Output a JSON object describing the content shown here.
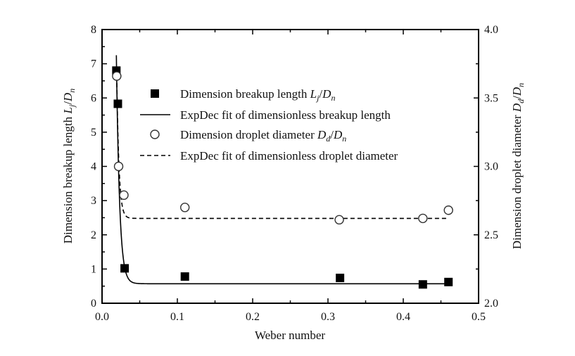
{
  "chart_data": {
    "type": "scatter",
    "title": "",
    "xlabel": "Weber number",
    "ylabel_left": {
      "text": "Dimension breakup length",
      "num": "L",
      "num_sub": "j",
      "den": "D",
      "den_sub": "n"
    },
    "ylabel_right": {
      "text": "Dimension droplet diameter",
      "num": "D",
      "num_sub": "d",
      "den": "D",
      "den_sub": "n"
    },
    "xlim": [
      0.0,
      0.5
    ],
    "ylim_left": [
      0,
      8
    ],
    "ylim_right": [
      2.0,
      4.0
    ],
    "x_ticks": [
      "0.0",
      "0.1",
      "0.2",
      "0.3",
      "0.4",
      "0.5"
    ],
    "y_left_ticks": [
      "0",
      "1",
      "2",
      "3",
      "4",
      "5",
      "6",
      "7",
      "8"
    ],
    "y_right_ticks": [
      "2.0",
      "2.5",
      "3.0",
      "3.5",
      "4.0"
    ],
    "grid": false,
    "legend_position": "upper-center",
    "series": [
      {
        "name": "Dimension breakup length Lj/Dn",
        "legend": {
          "text": "Dimension breakup length",
          "num": "L",
          "num_sub": "j",
          "den": "D",
          "den_sub": "n"
        },
        "axis": "left",
        "marker": "filled-square",
        "x": [
          0.019,
          0.021,
          0.03,
          0.11,
          0.316,
          0.426,
          0.46
        ],
        "y": [
          6.8,
          5.83,
          1.02,
          0.78,
          0.74,
          0.55,
          0.62
        ]
      },
      {
        "name": "ExpDec fit of dimensionless breakup length",
        "legend": {
          "text": "ExpDec fit of dimensionless breakup length"
        },
        "axis": "left",
        "line": "solid",
        "fit": {
          "y0": 0.57,
          "A": 6.68,
          "x0": 0.019,
          "t": 0.0042,
          "x_range": [
            0.019,
            0.46
          ]
        }
      },
      {
        "name": "Dimension droplet diameter Dd/Dn",
        "legend": {
          "text": "Dimension droplet diameter",
          "num": "D",
          "num_sub": "d",
          "den": "D",
          "den_sub": "n"
        },
        "axis": "right",
        "marker": "open-circle",
        "x": [
          0.0195,
          0.022,
          0.029,
          0.11,
          0.315,
          0.426,
          0.46
        ],
        "y": [
          3.66,
          3.0,
          2.79,
          2.7,
          2.61,
          2.62,
          2.68
        ]
      },
      {
        "name": "ExpDec fit of dimensionless droplet diameter",
        "legend": {
          "text": "ExpDec fit of dimensionless droplet diameter"
        },
        "axis": "right",
        "line": "dashed",
        "fit": {
          "y0": 2.62,
          "A": 1.04,
          "x0": 0.0195,
          "t": 0.003,
          "x_range": [
            0.0195,
            0.46
          ]
        }
      }
    ]
  }
}
